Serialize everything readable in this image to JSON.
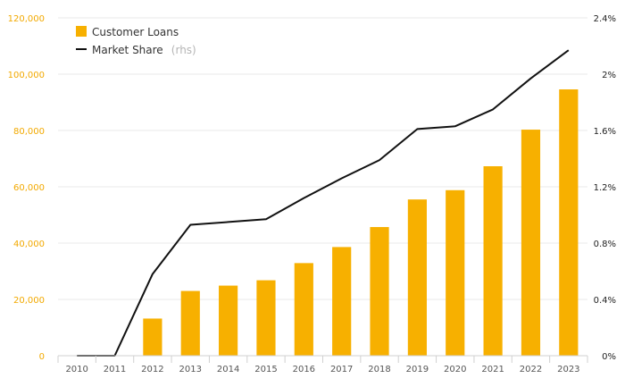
{
  "chart_data": {
    "type": "bar",
    "categories": [
      "2010",
      "2011",
      "2012",
      "2013",
      "2014",
      "2015",
      "2016",
      "2017",
      "2018",
      "2019",
      "2020",
      "2021",
      "2022",
      "2023"
    ],
    "series": [
      {
        "name": "Customer Loans",
        "axis": "left",
        "type": "bar",
        "color": "#f7b000",
        "values": [
          0,
          0,
          13200,
          23000,
          24900,
          26800,
          32900,
          38600,
          45700,
          55500,
          58800,
          67300,
          80300,
          94600
        ]
      },
      {
        "name": "Market Share",
        "legend_suffix": "(rhs)",
        "axis": "right",
        "type": "line",
        "color": "#111111",
        "values": [
          0,
          0,
          0.0058,
          0.0093,
          0.0095,
          0.0097,
          0.0112,
          0.0126,
          0.0139,
          0.0161,
          0.0163,
          0.0175,
          0.0197,
          0.0217
        ]
      }
    ],
    "yleft": {
      "ylim": [
        0,
        120000
      ],
      "ticks": [
        "0",
        "20,000",
        "40,000",
        "60,000",
        "80,000",
        "100,000",
        "120,000"
      ],
      "color": "#f2a900"
    },
    "yright": {
      "ylim": [
        0,
        0.024
      ],
      "ticks": [
        "0%",
        "0.4%",
        "0.8%",
        "1.2%",
        "1.6%",
        "2%",
        "2.4%"
      ]
    },
    "grid": true,
    "legend": "top-left"
  }
}
